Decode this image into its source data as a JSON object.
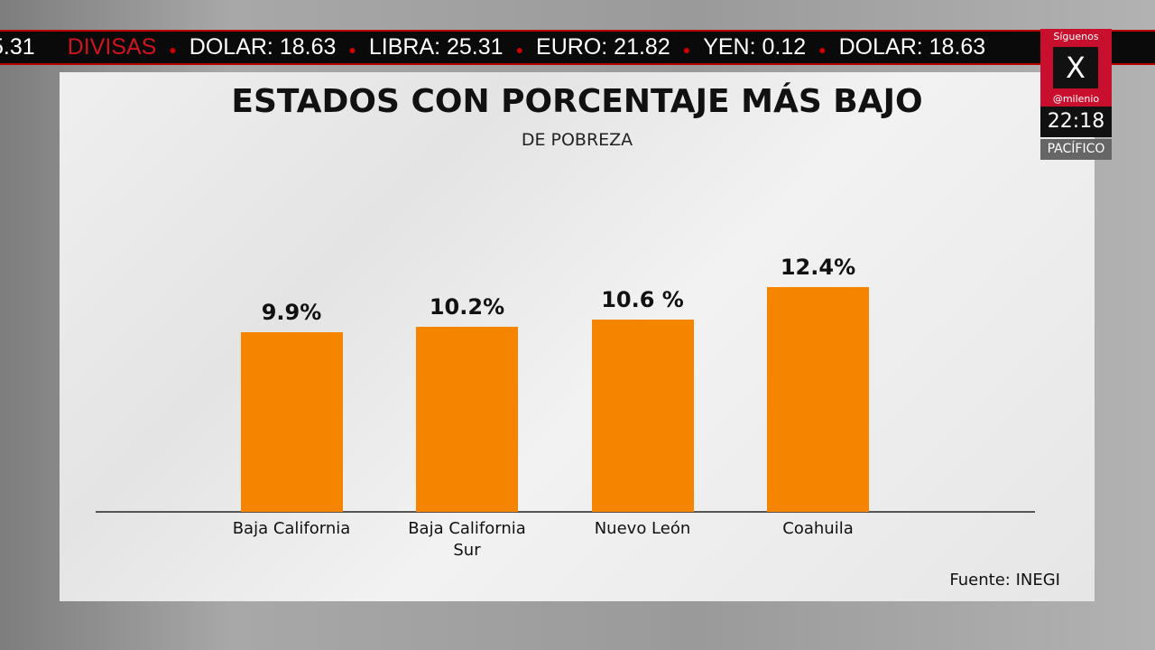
{
  "ticker": {
    "items": [
      "5.31",
      "DIVISAS",
      "DOLAR: 18.63",
      "LIBRA: 25.31",
      "EURO: 21.82",
      "YEN: 0.12",
      "DOLAR: 18.63"
    ]
  },
  "badge": {
    "follow": "Síguenos",
    "network": "X",
    "handle": "@milenio",
    "time": "22:18",
    "zone": "PACÍFICO"
  },
  "chart_data": {
    "type": "bar",
    "title": "ESTADOS CON PORCENTAJE MÁS BAJO",
    "subtitle": "DE POBREZA",
    "categories": [
      "Baja California",
      "Baja California Sur",
      "Nuevo León",
      "Coahuila"
    ],
    "values": [
      9.9,
      10.2,
      10.6,
      12.4
    ],
    "value_labels": [
      "9.9%",
      "10.2%",
      "10.6 %",
      "12.4%"
    ],
    "color": "#f58400",
    "ylim": [
      0,
      25
    ],
    "source": "Fuente: INEGI"
  }
}
